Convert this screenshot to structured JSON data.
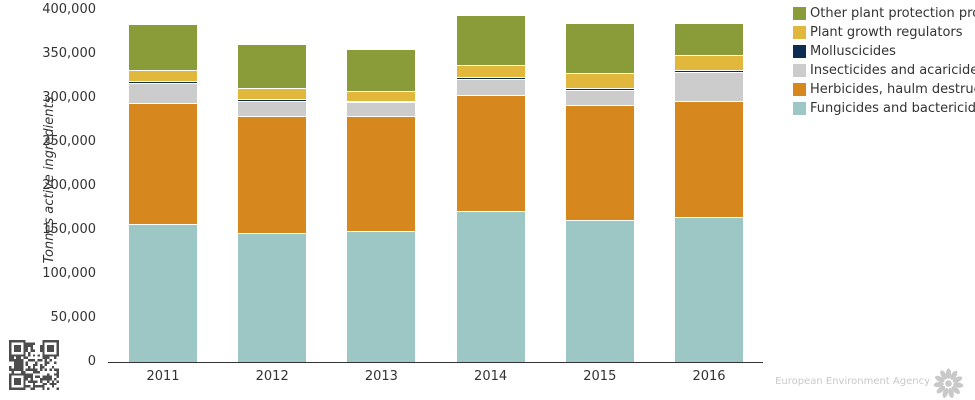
{
  "chart_data": {
    "type": "bar",
    "stacked": true,
    "title": "",
    "xlabel": "",
    "ylabel": "Tonnes active ingredients",
    "categories": [
      "2011",
      "2012",
      "2013",
      "2014",
      "2015",
      "2016"
    ],
    "series": [
      {
        "name": "Fungicides and bactericides",
        "color": "#9cc7c4",
        "values": [
          156000,
          145000,
          148000,
          170000,
          160000,
          163500
        ]
      },
      {
        "name": "Herbicides, haulm destructors and moss killers",
        "color": "#d6881f",
        "values": [
          137500,
          133500,
          130500,
          133000,
          131500,
          132500
        ]
      },
      {
        "name": "Insecticides and acaricides",
        "color": "#cccccc",
        "values": [
          24000,
          18500,
          16500,
          18500,
          18000,
          34000
        ]
      },
      {
        "name": "Molluscicides",
        "color": "#0d2c54",
        "values": [
          2500,
          2500,
          2500,
          3000,
          3000,
          2500
        ]
      },
      {
        "name": "Plant growth regulators",
        "color": "#e2b83c",
        "values": [
          13000,
          13500,
          12000,
          14000,
          17500,
          17500
        ]
      },
      {
        "name": "Other plant protection products",
        "color": "#8a9b3a",
        "values": [
          52500,
          50000,
          47500,
          57500,
          57000,
          37500
        ]
      }
    ],
    "ylim": [
      0,
      400000
    ],
    "ytick_step": 50000,
    "yticks": [
      "0",
      "50,000",
      "100,000",
      "150,000",
      "200,000",
      "250,000",
      "300,000",
      "350,000",
      "400,000"
    ],
    "grid": false,
    "legend_position": "top-right",
    "legend_order": "top-of-stack-first",
    "separator_color": "#ffffff",
    "axis_color": "#333333"
  },
  "footer": {
    "agency": "European Environment Agency"
  }
}
